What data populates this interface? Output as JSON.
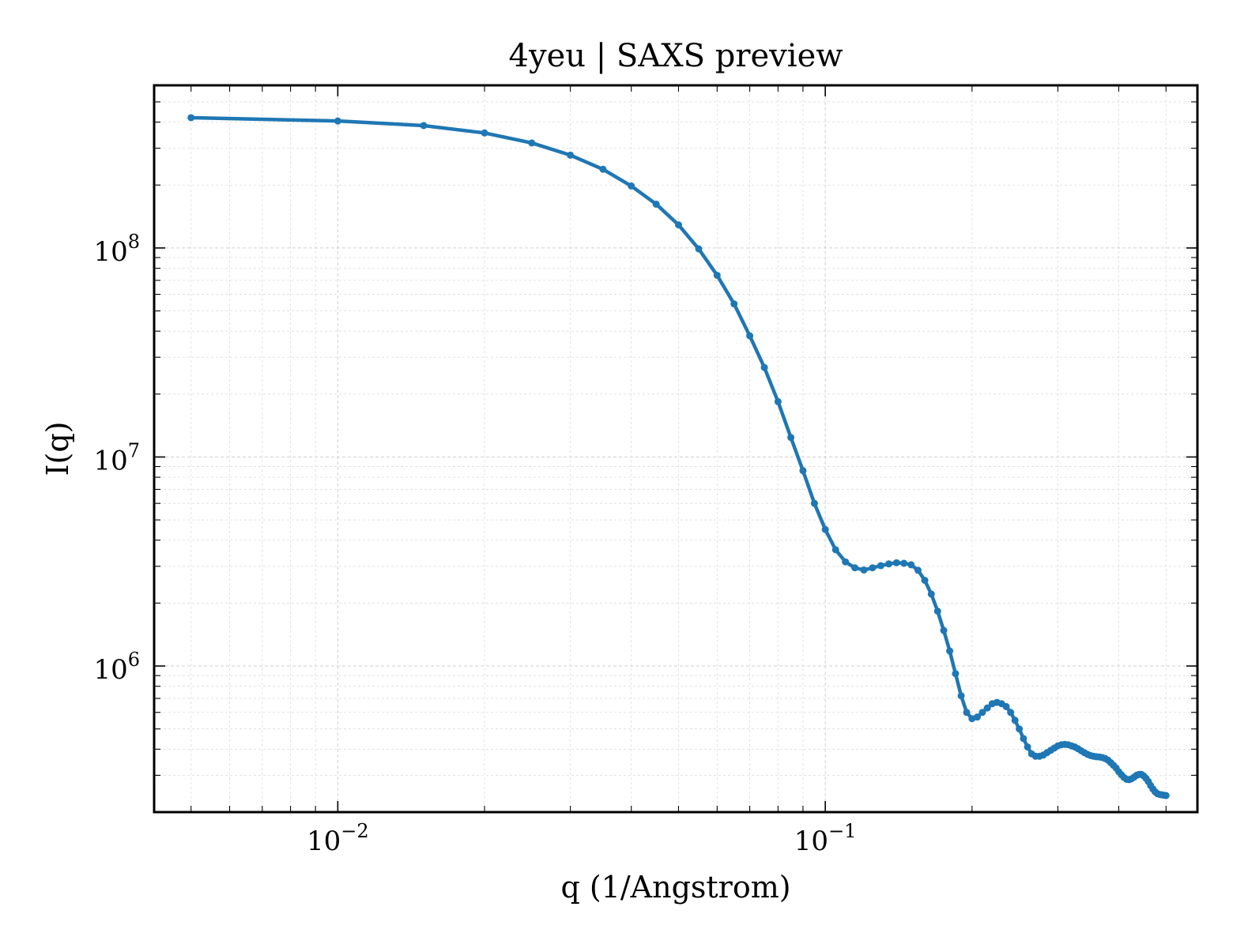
{
  "chart_data": {
    "type": "line",
    "title": "4yeu | SAXS preview",
    "xlabel": "q (1/Angstrom)",
    "ylabel": "I(q)",
    "xscale": "log",
    "yscale": "log",
    "xlim": [
      0.0042,
      0.58
    ],
    "ylim": [
      200000,
      600000000
    ],
    "grid": true,
    "x_ticks": [
      {
        "value": 0.01,
        "base": "10",
        "exp": "−2"
      },
      {
        "value": 0.1,
        "base": "10",
        "exp": "−1"
      }
    ],
    "y_ticks": [
      {
        "value": 1000000,
        "base": "10",
        "exp": "6"
      },
      {
        "value": 10000000,
        "base": "10",
        "exp": "7"
      },
      {
        "value": 100000000,
        "base": "10",
        "exp": "8"
      }
    ],
    "color": "#1f77b4",
    "series": [
      {
        "x": [
          0.005,
          0.01,
          0.015,
          0.02,
          0.025,
          0.03,
          0.035,
          0.04,
          0.045,
          0.05,
          0.055,
          0.06,
          0.065,
          0.07,
          0.075,
          0.08,
          0.085,
          0.09,
          0.095,
          0.1,
          0.105,
          0.11,
          0.115,
          0.12,
          0.125,
          0.13,
          0.135,
          0.14,
          0.145,
          0.15,
          0.155,
          0.16,
          0.165,
          0.17,
          0.175,
          0.18,
          0.185,
          0.19,
          0.195,
          0.2,
          0.205,
          0.21,
          0.215,
          0.22,
          0.225,
          0.23,
          0.235,
          0.24,
          0.245,
          0.25,
          0.255,
          0.26,
          0.265,
          0.27,
          0.275,
          0.28,
          0.285,
          0.29,
          0.295,
          0.3,
          0.305,
          0.31,
          0.315,
          0.32,
          0.325,
          0.33,
          0.335,
          0.34,
          0.345,
          0.35,
          0.355,
          0.36,
          0.365,
          0.37,
          0.375,
          0.38,
          0.385,
          0.39,
          0.395,
          0.4,
          0.405,
          0.41,
          0.415,
          0.42,
          0.425,
          0.43,
          0.435,
          0.44,
          0.445,
          0.45,
          0.455,
          0.46,
          0.465,
          0.47,
          0.475,
          0.48,
          0.485,
          0.49,
          0.495,
          0.5
        ],
        "y": [
          420000000,
          405000000,
          385000000,
          355000000,
          318000000,
          278000000,
          238000000,
          198000000,
          162000000,
          129000000,
          99000000,
          74000000,
          54000000,
          38000000,
          26800000,
          18400000,
          12400000,
          8600000,
          6000000,
          4500000,
          3600000,
          3150000,
          2950000,
          2880000,
          2950000,
          3020000,
          3080000,
          3120000,
          3100000,
          3050000,
          2870000,
          2570000,
          2210000,
          1830000,
          1480000,
          1180000,
          920000,
          720000,
          600000,
          560000,
          570000,
          600000,
          630000,
          660000,
          670000,
          660000,
          640000,
          600000,
          550000,
          500000,
          450000,
          410000,
          380000,
          370000,
          370000,
          375000,
          385000,
          395000,
          405000,
          415000,
          420000,
          422000,
          420000,
          415000,
          410000,
          402000,
          393000,
          385000,
          378000,
          373000,
          370000,
          368000,
          367000,
          365000,
          361000,
          355000,
          345000,
          335000,
          325000,
          312000,
          302000,
          293000,
          287000,
          286000,
          289000,
          294000,
          300000,
          303000,
          303000,
          298000,
          290000,
          280000,
          268000,
          258000,
          250000,
          245000,
          243000,
          242000,
          241000,
          240000
        ]
      }
    ]
  }
}
